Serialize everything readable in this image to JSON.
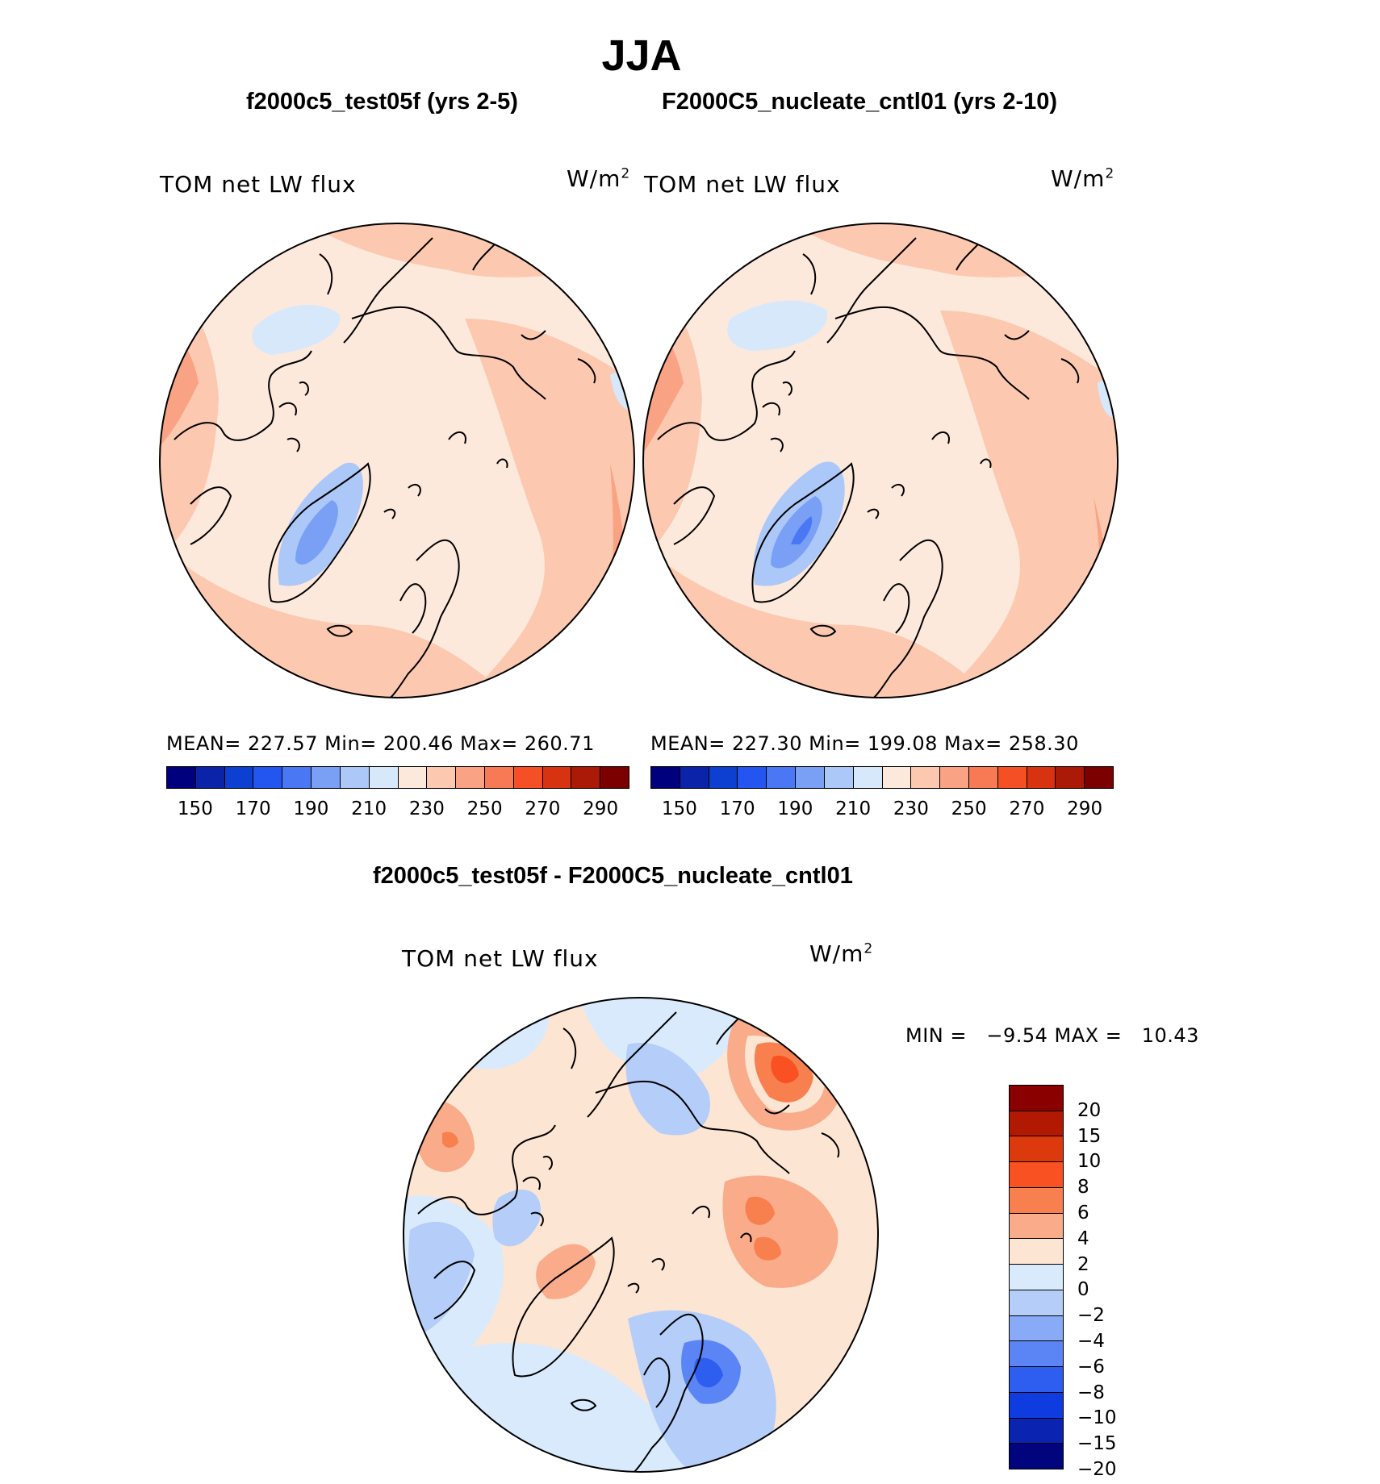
{
  "title": "JJA",
  "panels": [
    {
      "name": "model",
      "title": "f2000c5_test05f (yrs 2-5)",
      "variable": "TOM net LW flux",
      "units_base": "W/m",
      "units_exp": "2",
      "stats": "MEAN= 227.57   Min= 200.46   Max= 260.71",
      "ticks": [
        "150",
        "170",
        "190",
        "210",
        "230",
        "250",
        "270",
        "290"
      ]
    },
    {
      "name": "control",
      "title": "F2000C5_nucleate_cntl01 (yrs 2-10)",
      "variable": "TOM net LW flux",
      "units_base": "W/m",
      "units_exp": "2",
      "stats": "MEAN= 227.30   Min= 199.08   Max= 258.30",
      "ticks": [
        "150",
        "170",
        "190",
        "210",
        "230",
        "250",
        "270",
        "290"
      ]
    }
  ],
  "difference": {
    "title": "f2000c5_test05f - F2000C5_nucleate_cntl01",
    "variable": "TOM net LW flux",
    "units_base": "W/m",
    "units_exp": "2",
    "minmax": "MIN =   −9.54 MAX =   10.43",
    "ticks": [
      "20",
      "15",
      "10",
      "8",
      "6",
      "4",
      "2",
      "0",
      "−2",
      "−4",
      "−6",
      "−8",
      "−10",
      "−15",
      "−20"
    ]
  },
  "colors": {
    "abs_scale": [
      "#00007f",
      "#0a23a8",
      "#0d3fd0",
      "#2356f0",
      "#4a78f4",
      "#7aa0f6",
      "#acc8f8",
      "#d7e8fb",
      "#fde9dc",
      "#fcc9b0",
      "#faa284",
      "#f87a54",
      "#f44f25",
      "#d73310",
      "#ab1a06",
      "#7d0000"
    ],
    "diff_scale": [
      "#8a0000",
      "#b11a00",
      "#dc3a0c",
      "#fa5123",
      "#f8804e",
      "#f9ab8a",
      "#fde5d4",
      "#d8eafb",
      "#b4cdf9",
      "#89aaf7",
      "#5b85f4",
      "#2d5ef0",
      "#0f3ce0",
      "#0a23b0",
      "#00057d"
    ]
  }
}
